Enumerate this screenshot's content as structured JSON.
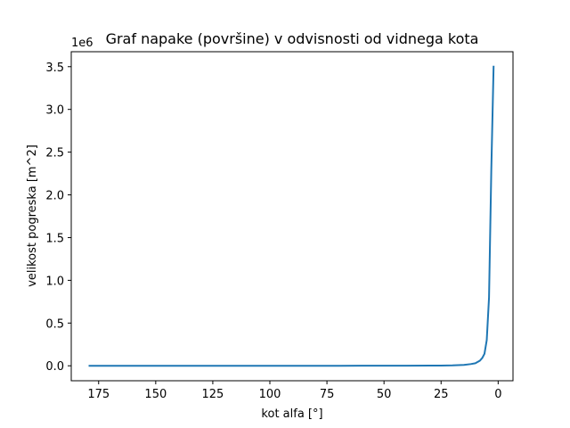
{
  "chart_data": {
    "type": "line",
    "title": "Graf napake (površine) v odvisnosti od vidnega kota",
    "xlabel": "kot alfa [°]",
    "ylabel": "velikost pogreska [m^2]",
    "y_offset_label": "1e6",
    "x_inverted": true,
    "xlim": [
      187,
      -6.5
    ],
    "ylim": [
      -0.175,
      3.675
    ],
    "x_ticks": [
      175,
      150,
      125,
      100,
      75,
      50,
      25,
      0
    ],
    "x_tick_labels": [
      "175",
      "150",
      "125",
      "100",
      "75",
      "50",
      "25",
      "0"
    ],
    "y_ticks": [
      0.0,
      0.5,
      1.0,
      1.5,
      2.0,
      2.5,
      3.0,
      3.5
    ],
    "y_tick_labels": [
      "0.0",
      "0.5",
      "1.0",
      "1.5",
      "2.0",
      "2.5",
      "3.0",
      "3.5"
    ],
    "grid": false,
    "series": [
      {
        "color": "#1f77b4",
        "x": [
          179,
          150,
          120,
          90,
          60,
          40,
          30,
          25,
          20,
          15,
          12,
          10,
          8,
          7,
          6,
          5,
          4,
          3,
          2
        ],
        "y": [
          0.0,
          0.0,
          0.0,
          0.0,
          0.0005,
          0.001,
          0.002,
          0.003,
          0.005,
          0.01,
          0.02,
          0.03,
          0.06,
          0.09,
          0.14,
          0.3,
          0.8,
          2.3,
          3.5
        ]
      }
    ]
  }
}
